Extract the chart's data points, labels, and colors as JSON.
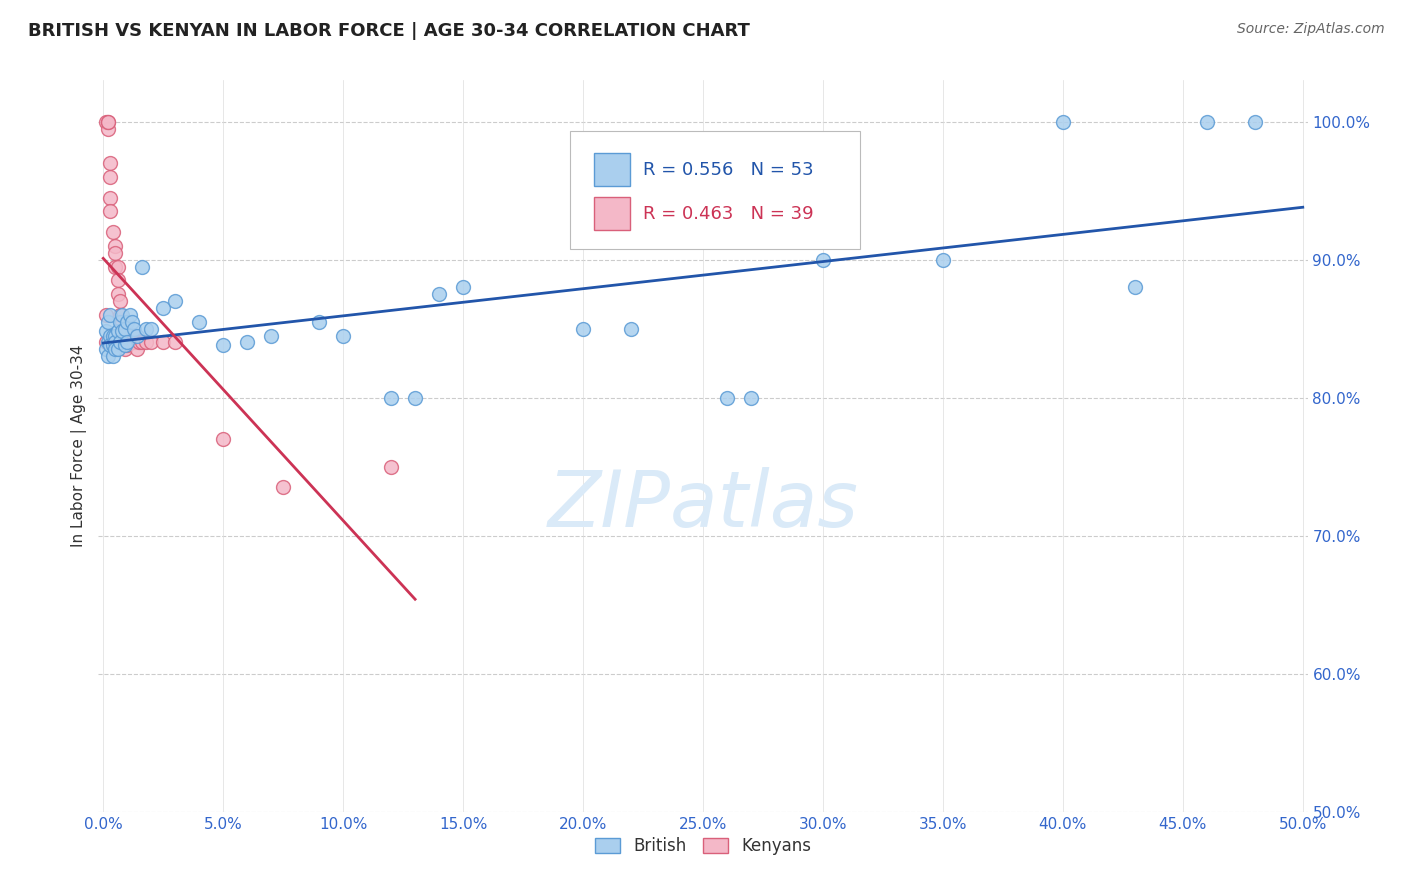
{
  "title": "BRITISH VS KENYAN IN LABOR FORCE | AGE 30-34 CORRELATION CHART",
  "source": "Source: ZipAtlas.com",
  "ylabel": "In Labor Force | Age 30-34",
  "watermark_zip": "ZIP",
  "watermark_atlas": "atlas",
  "xlim": [
    -0.002,
    0.502
  ],
  "ylim": [
    0.5,
    1.03
  ],
  "xticks": [
    0.0,
    0.05,
    0.1,
    0.15,
    0.2,
    0.25,
    0.3,
    0.35,
    0.4,
    0.45,
    0.5
  ],
  "yticks": [
    0.5,
    0.6,
    0.7,
    0.8,
    0.9,
    1.0
  ],
  "ytick_labels": [
    "50.0%",
    "60.0%",
    "70.0%",
    "80.0%",
    "90.0%",
    "100.0%"
  ],
  "xtick_labels": [
    "0.0%",
    "5.0%",
    "10.0%",
    "15.0%",
    "20.0%",
    "25.0%",
    "30.0%",
    "35.0%",
    "40.0%",
    "45.0%",
    "50.0%"
  ],
  "british_R": 0.556,
  "british_N": 53,
  "kenyan_R": 0.463,
  "kenyan_N": 39,
  "british_color": "#aacfee",
  "british_edge_color": "#5b9bd5",
  "kenyan_color": "#f4b8c8",
  "kenyan_edge_color": "#d9607a",
  "trend_british_color": "#2255aa",
  "trend_kenyan_color": "#cc3355",
  "background_color": "#ffffff",
  "grid_color": "#cccccc",
  "title_color": "#222222",
  "source_color": "#666666",
  "ylabel_color": "#333333",
  "ytick_color": "#3366cc",
  "xtick_color": "#3366cc",
  "watermark_color": "#daeaf8",
  "british_x": [
    0.001,
    0.001,
    0.002,
    0.002,
    0.002,
    0.003,
    0.003,
    0.003,
    0.004,
    0.004,
    0.004,
    0.005,
    0.005,
    0.005,
    0.006,
    0.006,
    0.007,
    0.007,
    0.008,
    0.008,
    0.009,
    0.009,
    0.01,
    0.01,
    0.011,
    0.012,
    0.013,
    0.014,
    0.016,
    0.018,
    0.02,
    0.025,
    0.03,
    0.04,
    0.05,
    0.06,
    0.07,
    0.09,
    0.1,
    0.12,
    0.13,
    0.14,
    0.15,
    0.2,
    0.22,
    0.26,
    0.27,
    0.3,
    0.35,
    0.4,
    0.43,
    0.46,
    0.48
  ],
  "british_y": [
    0.848,
    0.835,
    0.855,
    0.84,
    0.83,
    0.86,
    0.845,
    0.838,
    0.845,
    0.838,
    0.83,
    0.845,
    0.84,
    0.835,
    0.848,
    0.835,
    0.855,
    0.84,
    0.86,
    0.848,
    0.85,
    0.838,
    0.855,
    0.84,
    0.86,
    0.855,
    0.85,
    0.845,
    0.895,
    0.85,
    0.85,
    0.865,
    0.87,
    0.855,
    0.838,
    0.84,
    0.845,
    0.855,
    0.845,
    0.8,
    0.8,
    0.875,
    0.88,
    0.85,
    0.85,
    0.8,
    0.8,
    0.9,
    0.9,
    1.0,
    0.88,
    1.0,
    1.0
  ],
  "kenyan_x": [
    0.001,
    0.001,
    0.001,
    0.002,
    0.002,
    0.002,
    0.003,
    0.003,
    0.003,
    0.003,
    0.004,
    0.005,
    0.005,
    0.005,
    0.006,
    0.006,
    0.006,
    0.007,
    0.007,
    0.008,
    0.008,
    0.009,
    0.009,
    0.01,
    0.01,
    0.011,
    0.012,
    0.013,
    0.013,
    0.014,
    0.015,
    0.016,
    0.018,
    0.02,
    0.025,
    0.03,
    0.05,
    0.075,
    0.12
  ],
  "kenyan_y": [
    0.84,
    0.86,
    1.0,
    0.995,
    1.0,
    1.0,
    0.97,
    0.96,
    0.945,
    0.935,
    0.92,
    0.91,
    0.905,
    0.895,
    0.895,
    0.885,
    0.875,
    0.87,
    0.86,
    0.855,
    0.845,
    0.84,
    0.835,
    0.845,
    0.838,
    0.845,
    0.84,
    0.84,
    0.845,
    0.835,
    0.84,
    0.84,
    0.84,
    0.84,
    0.84,
    0.84,
    0.77,
    0.735,
    0.75
  ],
  "marker_size": 100,
  "marker_linewidth": 1.0,
  "trend_linewidth": 2.0
}
